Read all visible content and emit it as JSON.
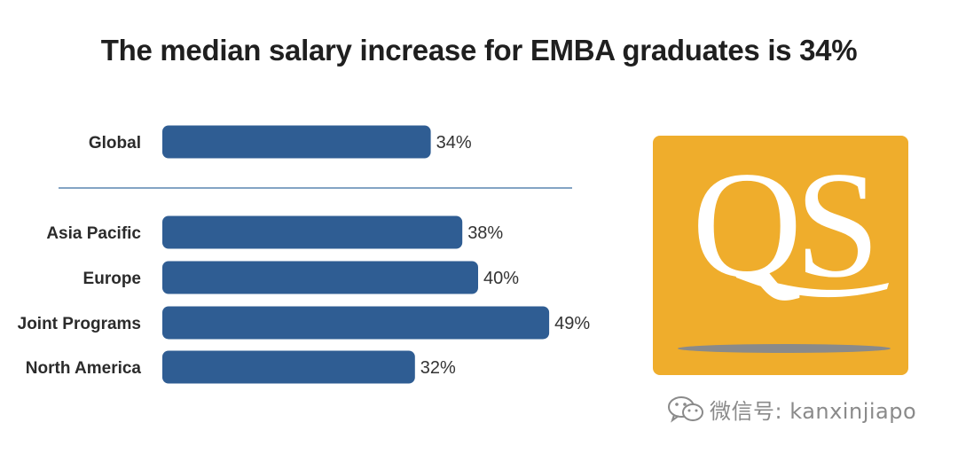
{
  "title": "The median salary increase for EMBA graduates is 34%",
  "colors": {
    "bar": "#2f5d93",
    "divider": "#5a86b0",
    "logo_bg": "#efad2c",
    "logo_text": "#ffffff",
    "logo_shadow": "#8a8a8a"
  },
  "logo": {
    "text": "QS"
  },
  "watermark": {
    "icon": "wechat-icon",
    "text": "微信号: kanxinjiapo"
  },
  "chart_data": {
    "type": "bar",
    "orientation": "horizontal",
    "title": "The median salary increase for EMBA graduates is 34%",
    "xlabel": "",
    "ylabel": "",
    "xlim": [
      0,
      60
    ],
    "grid": false,
    "categories": [
      "Global",
      "Asia Pacific",
      "Europe",
      "Joint Programs",
      "North America"
    ],
    "values": [
      34,
      38,
      40,
      49,
      32
    ],
    "value_labels": [
      "34%",
      "38%",
      "40%",
      "49%",
      "32%"
    ],
    "groups": [
      [
        "Global"
      ],
      [
        "Asia Pacific",
        "Europe",
        "Joint Programs",
        "North America"
      ]
    ]
  }
}
